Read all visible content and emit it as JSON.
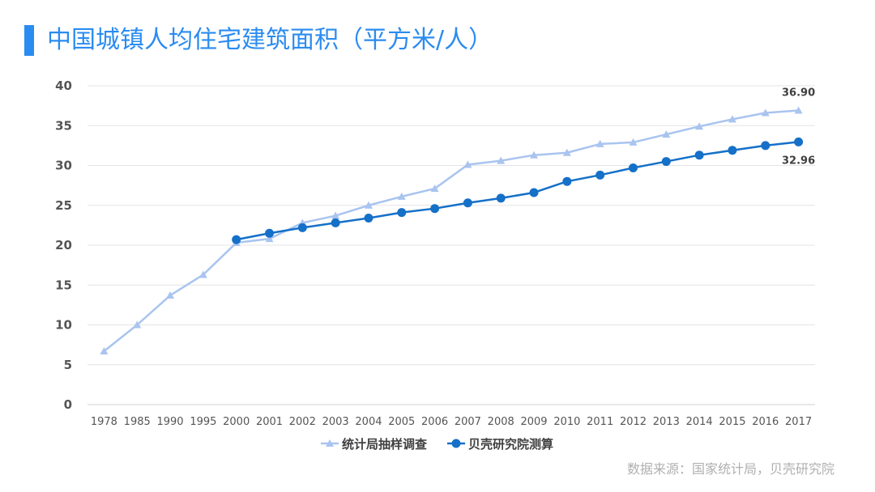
{
  "title": "中国城镇人均住宅建筑面积（平方米/人）",
  "source": "数据来源：国家统计局，贝壳研究院",
  "chart_data": {
    "type": "line",
    "categories": [
      "1978",
      "1985",
      "1990",
      "1995",
      "2000",
      "2001",
      "2002",
      "2003",
      "2004",
      "2005",
      "2006",
      "2007",
      "2008",
      "2009",
      "2010",
      "2011",
      "2012",
      "2013",
      "2014",
      "2015",
      "2016",
      "2017"
    ],
    "ylim": [
      0,
      40
    ],
    "yticks": [
      0,
      5,
      10,
      15,
      20,
      25,
      30,
      35,
      40
    ],
    "grid": true,
    "legend_position": "bottom",
    "series": [
      {
        "name": "统计局抽样调查",
        "color": "#a9c4ef",
        "marker": "triangle",
        "values": [
          6.7,
          10.0,
          13.7,
          16.3,
          20.3,
          20.8,
          22.8,
          23.7,
          25.0,
          26.1,
          27.1,
          30.1,
          30.6,
          31.3,
          31.6,
          32.7,
          32.9,
          33.9,
          34.9,
          35.8,
          36.6,
          36.9
        ],
        "end_label": "36.90"
      },
      {
        "name": "贝壳研究院测算",
        "color": "#1570c8",
        "marker": "circle",
        "values": [
          null,
          null,
          null,
          null,
          20.7,
          21.5,
          22.2,
          22.8,
          23.4,
          24.1,
          24.6,
          25.3,
          25.9,
          26.6,
          28.0,
          28.8,
          29.7,
          30.5,
          31.3,
          31.9,
          32.5,
          32.96
        ],
        "end_label": "32.96"
      }
    ]
  }
}
